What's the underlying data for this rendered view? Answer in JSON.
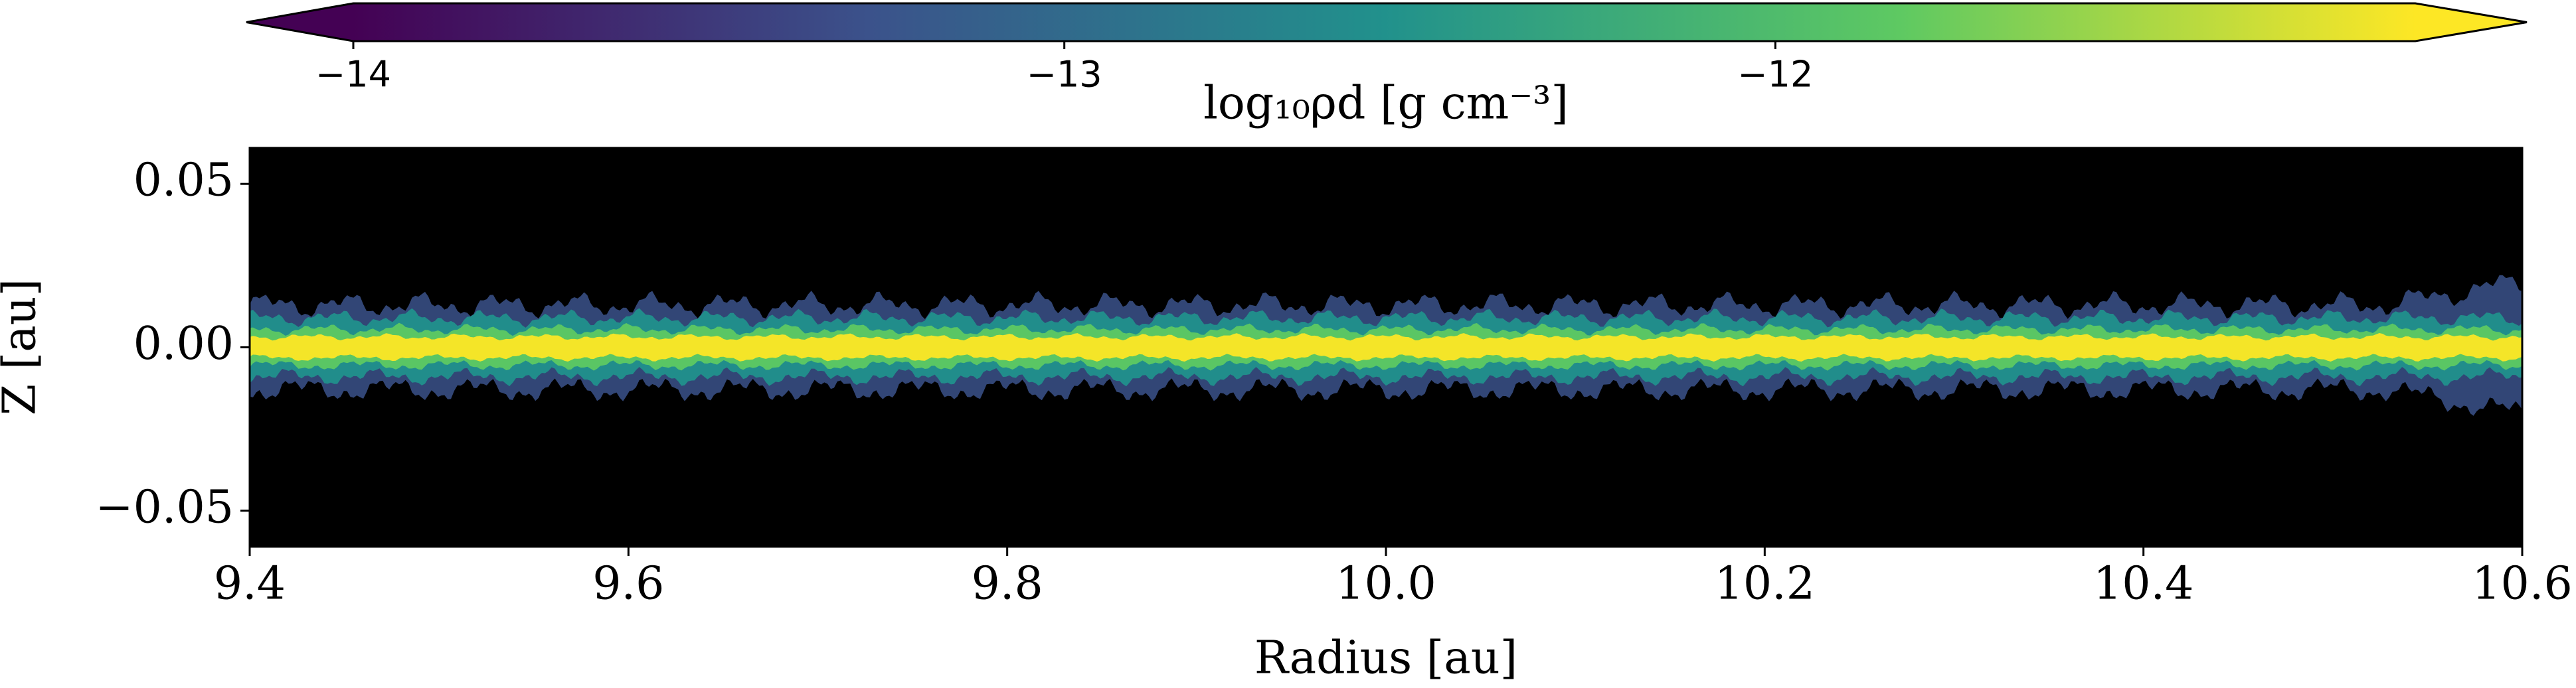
{
  "chart_data": {
    "type": "heatmap",
    "xlabel": "Radius [au]",
    "ylabel": "Z [au]",
    "xlim": [
      9.4,
      10.6
    ],
    "xticks": [
      9.4,
      9.6,
      9.8,
      {
        "value": 10.0,
        "label": "10.0"
      },
      10.2,
      10.4,
      10.6
    ],
    "ylim": [
      -0.061,
      0.061
    ],
    "yticks": [
      {
        "value": -0.05,
        "label": "−0.05"
      },
      {
        "value": 0,
        "label": "0.00"
      },
      {
        "value": 0.05,
        "label": "0.05"
      }
    ],
    "colorbar": {
      "label": "log₁₀ρd [g cm⁻³]",
      "lim": [
        -14,
        -11.1
      ],
      "ticks": [
        {
          "value": -14,
          "label": "−14"
        },
        {
          "value": -13,
          "label": "−13"
        },
        {
          "value": -12,
          "label": "−12"
        }
      ],
      "colors": [
        "#440154",
        "#3b528b",
        "#21918c",
        "#5ec962",
        "#fde725"
      ]
    }
  }
}
